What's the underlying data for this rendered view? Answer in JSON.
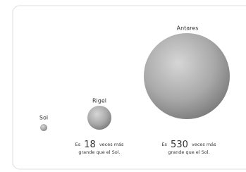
{
  "stars": [
    {
      "name": "Sol"
    },
    {
      "name": "Rigel",
      "prefix": "Es",
      "number": "18",
      "suffix_1": "veces más",
      "suffix_2": "grande que el Sol."
    },
    {
      "name": "Antares",
      "prefix": "Es",
      "number": "530",
      "suffix_1": "veces más",
      "suffix_2": "grande que el Sol."
    }
  ]
}
